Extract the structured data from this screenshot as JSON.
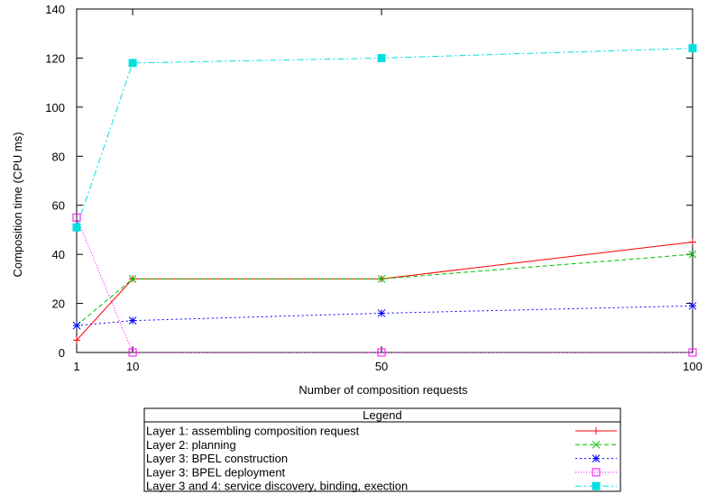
{
  "chart_data": {
    "type": "line",
    "xlabel": "Number of composition requests",
    "ylabel": "Composition time (CPU ms)",
    "xlim": [
      1,
      100
    ],
    "ylim": [
      0,
      140
    ],
    "x_ticks": [
      1,
      10,
      50,
      100
    ],
    "y_ticks": [
      0,
      20,
      40,
      60,
      80,
      100,
      120,
      140
    ],
    "grid": false,
    "legend": {
      "title": "Legend",
      "placement": "bottom-center, below plot"
    },
    "series": [
      {
        "name": "Layer 1: assembling composition request",
        "color": "#ff0000",
        "marker": "plus",
        "dash": "solid",
        "x": [
          1,
          10,
          50,
          100
        ],
        "y": [
          5,
          30,
          30,
          45
        ]
      },
      {
        "name": "Layer 2: planning",
        "color": "#00c000",
        "marker": "cross",
        "dash": "dashed",
        "x": [
          1,
          10,
          50,
          100
        ],
        "y": [
          11,
          30,
          30,
          40
        ]
      },
      {
        "name": "Layer 3: BPEL construction",
        "color": "#0000ff",
        "marker": "star",
        "dash": "dotted",
        "x": [
          1,
          10,
          50,
          100
        ],
        "y": [
          11,
          13,
          16,
          19
        ]
      },
      {
        "name": "Layer 3: BPEL deployment",
        "color": "#ff00ff",
        "marker": "open-square",
        "dash": "dotted-fine",
        "x": [
          1,
          10,
          50,
          100
        ],
        "y": [
          55,
          0,
          0,
          0
        ]
      },
      {
        "name": "Layer 3 and 4: service discovery, binding, exection",
        "color": "#00e0e0",
        "marker": "filled-square",
        "dash": "dash-dot",
        "x": [
          1,
          10,
          50,
          100
        ],
        "y": [
          51,
          118,
          120,
          124
        ]
      }
    ]
  }
}
